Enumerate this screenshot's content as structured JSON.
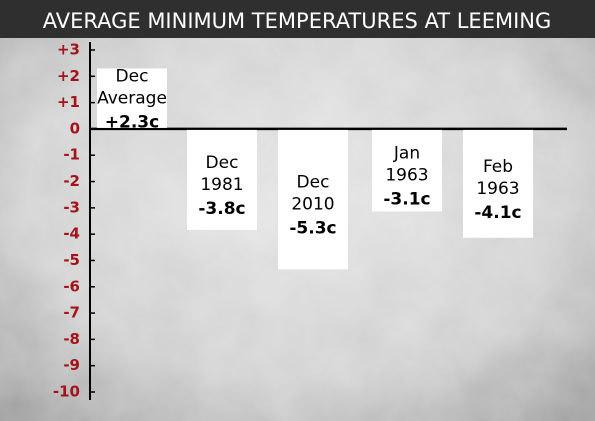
{
  "chart_data": {
    "type": "bar",
    "title": "AVERAGE MINIMUM TEMPERATURES AT LEEMING",
    "categories": [
      [
        "Dec",
        "Average"
      ],
      [
        "Dec",
        "1981"
      ],
      [
        "Dec",
        "2010"
      ],
      [
        "Jan",
        "1963"
      ],
      [
        "Feb",
        "1963"
      ]
    ],
    "values": [
      2.3,
      -3.8,
      -5.3,
      -3.1,
      -4.1
    ],
    "value_labels": [
      "+2.3c",
      "-3.8c",
      "-5.3c",
      "-3.1c",
      "-4.1c"
    ],
    "color": "#ffffff",
    "ylim": [
      -10,
      3
    ],
    "yticks": [
      {
        "value": 3,
        "label": "+3"
      },
      {
        "value": 2,
        "label": "+2"
      },
      {
        "value": 1,
        "label": "+1"
      },
      0,
      -1,
      -2,
      -3,
      -4,
      -5,
      -6,
      -7,
      -8,
      -9,
      -10
    ]
  }
}
